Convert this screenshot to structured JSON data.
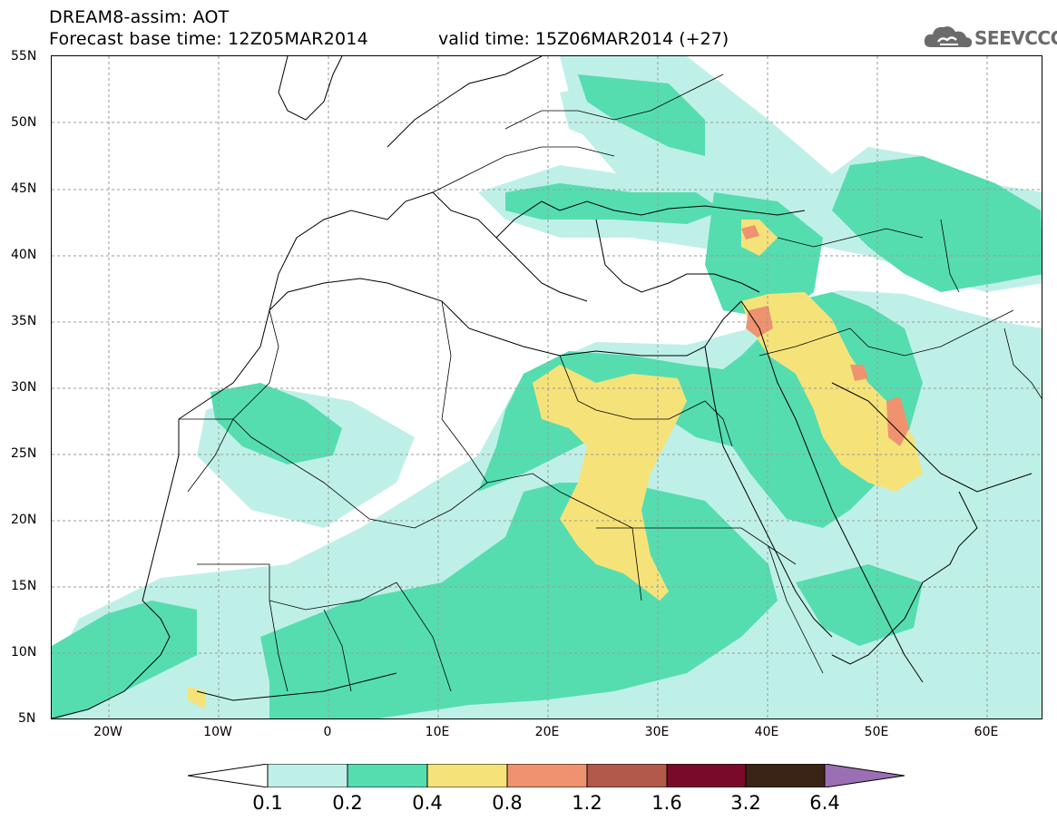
{
  "header": {
    "title_line1": "DREAM8-assim: AOT",
    "title_line2": "Forecast base time: 12Z05MAR2014",
    "valid_time": "valid time: 15Z06MAR2014 (+27)",
    "logo_text": "SEEVCCC"
  },
  "axes": {
    "lat_labels": [
      "55N",
      "50N",
      "45N",
      "40N",
      "35N",
      "30N",
      "25N",
      "20N",
      "15N",
      "10N",
      "5N"
    ],
    "lon_labels": [
      "20W",
      "10W",
      "0",
      "10E",
      "20E",
      "30E",
      "40E",
      "50E",
      "60E"
    ]
  },
  "legend": {
    "labels": [
      "0.1",
      "0.2",
      "0.4",
      "0.8",
      "1.2",
      "1.6",
      "3.2",
      "6.4"
    ],
    "colors": [
      "#ffffff",
      "#bff0e8",
      "#55ddb0",
      "#f5e37a",
      "#ee9270",
      "#b2594a",
      "#7a0a2a",
      "#3a2415",
      "#9b6fb4"
    ]
  },
  "colors": {
    "very_low": "#bff0e8",
    "low": "#55ddb0",
    "medium": "#f5e37a",
    "high": "#ee9270",
    "grid": "#9a9a9a",
    "border": "#000000"
  }
}
